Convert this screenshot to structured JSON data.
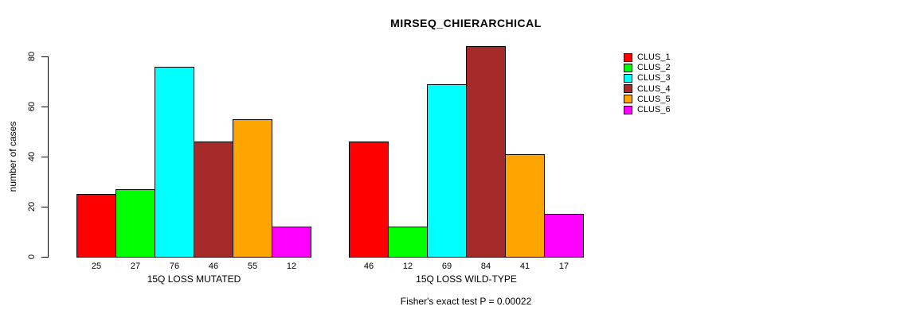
{
  "chart_data": {
    "type": "bar",
    "title": "MIRSEQ_CHIERARCHICAL",
    "xlabel": "",
    "ylabel": "number of cases",
    "ylim": [
      0,
      80
    ],
    "yticks": [
      0,
      20,
      40,
      60,
      80
    ],
    "grid": false,
    "legend_position": "right",
    "groups": [
      {
        "label": "15Q LOSS MUTATED",
        "values": [
          25,
          27,
          76,
          46,
          55,
          12
        ]
      },
      {
        "label": "15Q LOSS WILD-TYPE",
        "values": [
          46,
          12,
          69,
          84,
          41,
          17
        ]
      }
    ],
    "series": [
      {
        "name": "CLUS_1",
        "color": "#ff0000"
      },
      {
        "name": "CLUS_2",
        "color": "#00ff00"
      },
      {
        "name": "CLUS_3",
        "color": "#00ffff"
      },
      {
        "name": "CLUS_4",
        "color": "#a52a2a"
      },
      {
        "name": "CLUS_5",
        "color": "#ffa500"
      },
      {
        "name": "CLUS_6",
        "color": "#ff00ff"
      }
    ],
    "annotation": "Fisher's exact test P = 0.00022"
  }
}
